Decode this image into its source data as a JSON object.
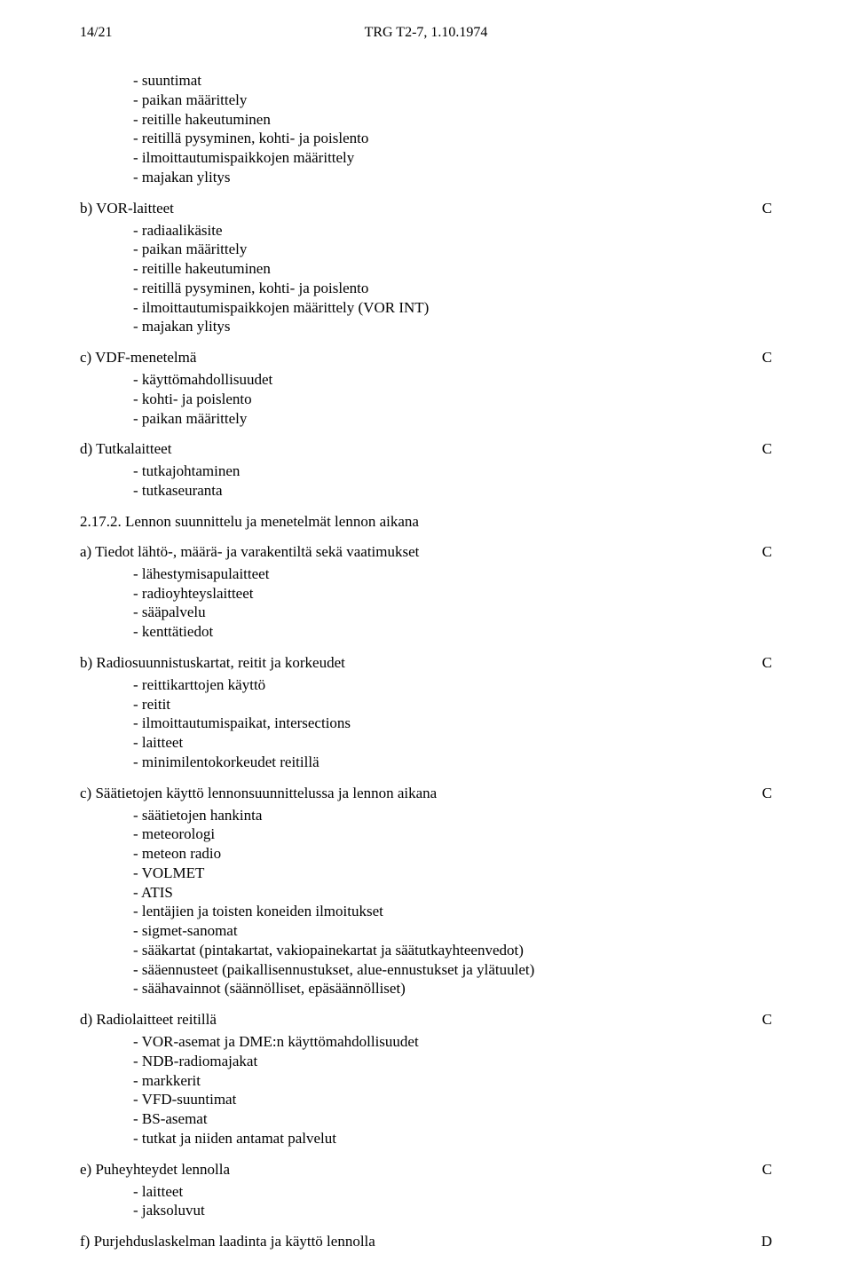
{
  "header": {
    "page_ref": "14/21",
    "doc_ref": "TRG T2-7, 1.10.1974"
  },
  "blocks": [
    {
      "heading": "",
      "grade": "",
      "bullets": [
        "- suuntimat",
        "- paikan määrittely",
        "- reitille hakeutuminen",
        "- reitillä pysyminen, kohti- ja poislento",
        "- ilmoittautumispaikkojen määrittely",
        "- majakan ylitys"
      ]
    },
    {
      "heading": "b) VOR-laitteet",
      "grade": "C",
      "bullets": [
        "- radiaalikäsite",
        "- paikan määrittely",
        "- reitille hakeutuminen",
        "- reitillä pysyminen, kohti- ja poislento",
        "- ilmoittautumispaikkojen määrittely (VOR INT)",
        "- majakan ylitys"
      ]
    },
    {
      "heading": "c) VDF-menetelmä",
      "grade": "C",
      "bullets": [
        "- käyttömahdollisuudet",
        "- kohti- ja poislento",
        "- paikan määrittely"
      ]
    },
    {
      "heading": "d) Tutkalaitteet",
      "grade": "C",
      "bullets": [
        "- tutkajohtaminen",
        "- tutkaseuranta"
      ]
    },
    {
      "heading": "2.17.2. Lennon suunnittelu ja menetelmät lennon aikana",
      "grade": "",
      "bullets": []
    },
    {
      "heading": "a) Tiedot lähtö-, määrä- ja varakentiltä sekä vaatimukset",
      "grade": "C",
      "bullets": [
        "- lähestymisapulaitteet",
        "- radioyhteyslaitteet",
        "- sääpalvelu",
        "- kenttätiedot"
      ]
    },
    {
      "heading": "b) Radiosuunnistuskartat, reitit ja korkeudet",
      "grade": "C",
      "bullets": [
        "- reittikarttojen käyttö",
        "- reitit",
        "- ilmoittautumispaikat, intersections",
        "- laitteet",
        "- minimilentokorkeudet reitillä"
      ]
    },
    {
      "heading": "c) Säätietojen käyttö lennonsuunnittelussa ja lennon aikana",
      "grade": "C",
      "bullets": [
        "- säätietojen hankinta",
        "- meteorologi",
        "- meteon radio",
        "- VOLMET",
        "- ATIS",
        "- lentäjien ja toisten koneiden ilmoitukset",
        "- sigmet-sanomat",
        "- sääkartat (pintakartat, vakiopainekartat ja säätutkayhteenvedot)",
        "- sääennusteet (paikallisennustukset, alue-ennustukset ja ylätuulet)",
        "- säähavainnot (säännölliset, epäsäännölliset)"
      ]
    },
    {
      "heading": "d) Radiolaitteet reitillä",
      "grade": "C",
      "bullets": [
        "- VOR-asemat ja DME:n käyttömahdollisuudet",
        "- NDB-radiomajakat",
        "- markkerit",
        "- VFD-suuntimat",
        "- BS-asemat",
        "- tutkat ja niiden antamat palvelut"
      ]
    },
    {
      "heading": "e) Puheyhteydet lennolla",
      "grade": "C",
      "bullets": [
        "- laitteet",
        "- jaksoluvut"
      ]
    },
    {
      "heading": "f) Purjehduslaskelman laadinta ja käyttö lennolla",
      "grade": "D",
      "bullets": []
    }
  ]
}
